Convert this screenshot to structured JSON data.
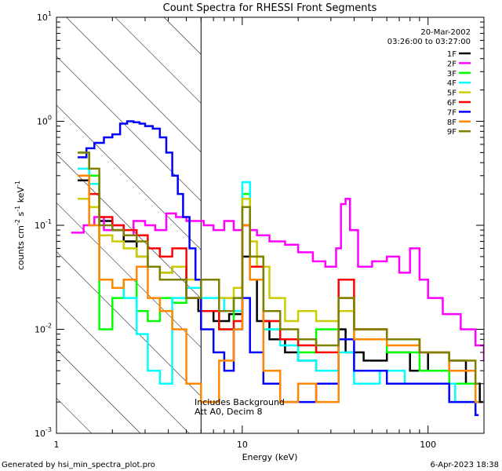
{
  "chart_data": {
    "type": "line",
    "title": "Count Spectra for RHESSI Front Segments",
    "xlabel": "Energy (keV)",
    "ylabel_parts": [
      "counts cm",
      "-2",
      " s",
      "-1",
      " keV",
      "-1"
    ],
    "xscale": "log",
    "yscale": "log",
    "xlim": [
      1,
      200
    ],
    "ylim": [
      0.001,
      10
    ],
    "x_ticks": [
      1,
      10,
      100
    ],
    "x_tick_labels": [
      "1",
      "10",
      "100"
    ],
    "y_ticks": [
      0.001,
      0.01,
      0.1,
      1,
      10
    ],
    "y_tick_labels": [
      {
        "base": "10",
        "exp": "-3"
      },
      {
        "base": "10",
        "exp": "-2"
      },
      {
        "base": "10",
        "exp": "-1"
      },
      {
        "base": "10",
        "exp": "0"
      },
      {
        "base": "10",
        "exp": "1"
      }
    ],
    "date": "20-Mar-2002",
    "time_range": "03:26:00 to 03:27:00",
    "annotation": [
      "Includes Background",
      "Att A0, Decim 8"
    ],
    "hatched_region_x": [
      1,
      6
    ],
    "legend_position": "top-right",
    "footer_left": "Generated by hsi_min_spectra_plot.pro",
    "footer_right": "6-Apr-2023 18:38",
    "series": [
      {
        "name": "1F",
        "color": "#000000",
        "x": [
          1.3,
          1.5,
          1.7,
          2.0,
          2.3,
          2.7,
          3.1,
          3.6,
          4.2,
          5.0,
          5.8,
          7.0,
          8.5,
          10,
          11,
          12,
          14,
          17,
          20,
          25,
          30,
          33,
          36,
          45,
          60,
          80,
          100,
          130,
          160,
          190
        ],
        "y": [
          0.27,
          0.25,
          0.11,
          0.09,
          0.07,
          0.05,
          0.04,
          0.035,
          0.04,
          0.02,
          0.015,
          0.012,
          0.014,
          0.05,
          0.03,
          0.012,
          0.008,
          0.006,
          0.005,
          0.004,
          0.004,
          0.01,
          0.006,
          0.005,
          0.006,
          0.004,
          0.006,
          0.005,
          0.003,
          0.002
        ]
      },
      {
        "name": "2F",
        "color": "#ff00ff",
        "x": [
          1.2,
          1.4,
          1.6,
          1.8,
          2.0,
          2.3,
          2.6,
          3.0,
          3.4,
          3.9,
          4.4,
          5.0,
          5.5,
          6.2,
          7.0,
          8.0,
          9.0,
          10,
          11,
          12,
          14,
          17,
          20,
          24,
          28,
          32,
          34,
          36,
          38,
          42,
          50,
          60,
          70,
          80,
          90,
          100,
          120,
          150,
          180,
          200
        ],
        "y": [
          0.085,
          0.1,
          0.12,
          0.09,
          0.1,
          0.08,
          0.11,
          0.1,
          0.09,
          0.13,
          0.12,
          0.11,
          0.11,
          0.1,
          0.09,
          0.11,
          0.09,
          0.1,
          0.09,
          0.08,
          0.07,
          0.065,
          0.055,
          0.045,
          0.04,
          0.06,
          0.16,
          0.18,
          0.09,
          0.04,
          0.045,
          0.05,
          0.035,
          0.06,
          0.03,
          0.02,
          0.014,
          0.01,
          0.007,
          0.005
        ]
      },
      {
        "name": "3F",
        "color": "#00ff00",
        "x": [
          1.3,
          1.5,
          1.7,
          2.0,
          2.3,
          2.7,
          3.1,
          3.6,
          4.2,
          5.0,
          6.0,
          7.5,
          9.0,
          10,
          11,
          13,
          16,
          20,
          25,
          33,
          40,
          60,
          90,
          130,
          180
        ],
        "y": [
          0.5,
          0.3,
          0.01,
          0.02,
          0.03,
          0.015,
          0.012,
          0.02,
          0.018,
          0.03,
          0.015,
          0.01,
          0.02,
          0.2,
          0.05,
          0.01,
          0.008,
          0.006,
          0.01,
          0.02,
          0.008,
          0.006,
          0.004,
          0.003,
          0.002
        ]
      },
      {
        "name": "4F",
        "color": "#00ffff",
        "x": [
          1.3,
          1.5,
          1.7,
          2.0,
          2.3,
          2.7,
          3.1,
          3.6,
          4.2,
          5.0,
          6.0,
          8.0,
          10,
          11,
          13,
          16,
          20,
          25,
          33,
          40,
          55,
          75,
          100,
          140,
          180
        ],
        "y": [
          0.35,
          0.25,
          0.03,
          0.025,
          0.02,
          0.009,
          0.004,
          0.003,
          0.02,
          0.025,
          0.02,
          0.015,
          0.26,
          0.03,
          0.01,
          0.007,
          0.005,
          0.004,
          0.006,
          0.003,
          0.004,
          0.003,
          0.003,
          0.002,
          0.002
        ]
      },
      {
        "name": "5F",
        "color": "#cccc00",
        "x": [
          1.3,
          1.5,
          1.7,
          2.0,
          2.3,
          2.7,
          3.1,
          3.6,
          4.2,
          5.0,
          6.0,
          7.5,
          9.0,
          10,
          11,
          12,
          14,
          17,
          20,
          25,
          33,
          40,
          60,
          90,
          130,
          180
        ],
        "y": [
          0.18,
          0.15,
          0.08,
          0.07,
          0.06,
          0.05,
          0.04,
          0.035,
          0.04,
          0.03,
          0.03,
          0.02,
          0.025,
          0.18,
          0.07,
          0.04,
          0.02,
          0.012,
          0.015,
          0.012,
          0.015,
          0.01,
          0.008,
          0.006,
          0.004,
          0.003
        ]
      },
      {
        "name": "6F",
        "color": "#ff0000",
        "x": [
          1.3,
          1.5,
          1.7,
          2.0,
          2.3,
          2.7,
          3.1,
          3.6,
          4.2,
          5.0,
          6.0,
          7.5,
          9.0,
          10,
          11,
          13,
          16,
          20,
          25,
          33,
          40,
          60,
          90,
          130,
          180
        ],
        "y": [
          0.3,
          0.2,
          0.12,
          0.1,
          0.09,
          0.08,
          0.06,
          0.05,
          0.06,
          0.02,
          0.015,
          0.01,
          0.012,
          0.1,
          0.04,
          0.012,
          0.008,
          0.007,
          0.006,
          0.03,
          0.01,
          0.008,
          0.006,
          0.004,
          0.003
        ]
      },
      {
        "name": "7F",
        "color": "#0000ff",
        "x": [
          1.3,
          1.45,
          1.6,
          1.8,
          2.0,
          2.2,
          2.4,
          2.6,
          2.8,
          3.0,
          3.3,
          3.6,
          3.9,
          4.2,
          4.5,
          4.8,
          5.2,
          5.6,
          6.0,
          7.0,
          8.0,
          9.0,
          10,
          11,
          13,
          16,
          20,
          25,
          33,
          40,
          60,
          90,
          130,
          180
        ],
        "y": [
          0.45,
          0.55,
          0.62,
          0.7,
          0.75,
          0.95,
          1.0,
          0.98,
          0.95,
          0.9,
          0.85,
          0.7,
          0.5,
          0.3,
          0.2,
          0.12,
          0.06,
          0.03,
          0.01,
          0.006,
          0.004,
          0.01,
          0.02,
          0.006,
          0.003,
          0.002,
          0.002,
          0.003,
          0.008,
          0.004,
          0.003,
          0.003,
          0.002,
          0.0015
        ]
      },
      {
        "name": "8F",
        "color": "#ff8800",
        "x": [
          1.3,
          1.5,
          1.7,
          2.0,
          2.3,
          2.7,
          3.1,
          3.6,
          4.2,
          5.0,
          6.0,
          7.5,
          9.0,
          10,
          11,
          13,
          16,
          20,
          25,
          33,
          40,
          60,
          90,
          130,
          180
        ],
        "y": [
          0.3,
          0.1,
          0.03,
          0.025,
          0.03,
          0.04,
          0.02,
          0.015,
          0.01,
          0.003,
          0.002,
          0.005,
          0.01,
          0.1,
          0.03,
          0.004,
          0.002,
          0.003,
          0.002,
          0.02,
          0.008,
          0.007,
          0.006,
          0.004,
          0.002
        ]
      },
      {
        "name": "9F",
        "color": "#808000",
        "x": [
          1.3,
          1.5,
          1.7,
          2.0,
          2.3,
          2.7,
          3.1,
          3.6,
          4.2,
          5.0,
          6.0,
          7.5,
          9.0,
          10,
          11,
          13,
          16,
          20,
          25,
          33,
          40,
          60,
          90,
          130,
          180
        ],
        "y": [
          0.5,
          0.35,
          0.1,
          0.09,
          0.08,
          0.07,
          0.04,
          0.03,
          0.03,
          0.02,
          0.03,
          0.015,
          0.02,
          0.15,
          0.05,
          0.015,
          0.01,
          0.008,
          0.007,
          0.02,
          0.01,
          0.008,
          0.006,
          0.005,
          0.003
        ]
      }
    ]
  }
}
